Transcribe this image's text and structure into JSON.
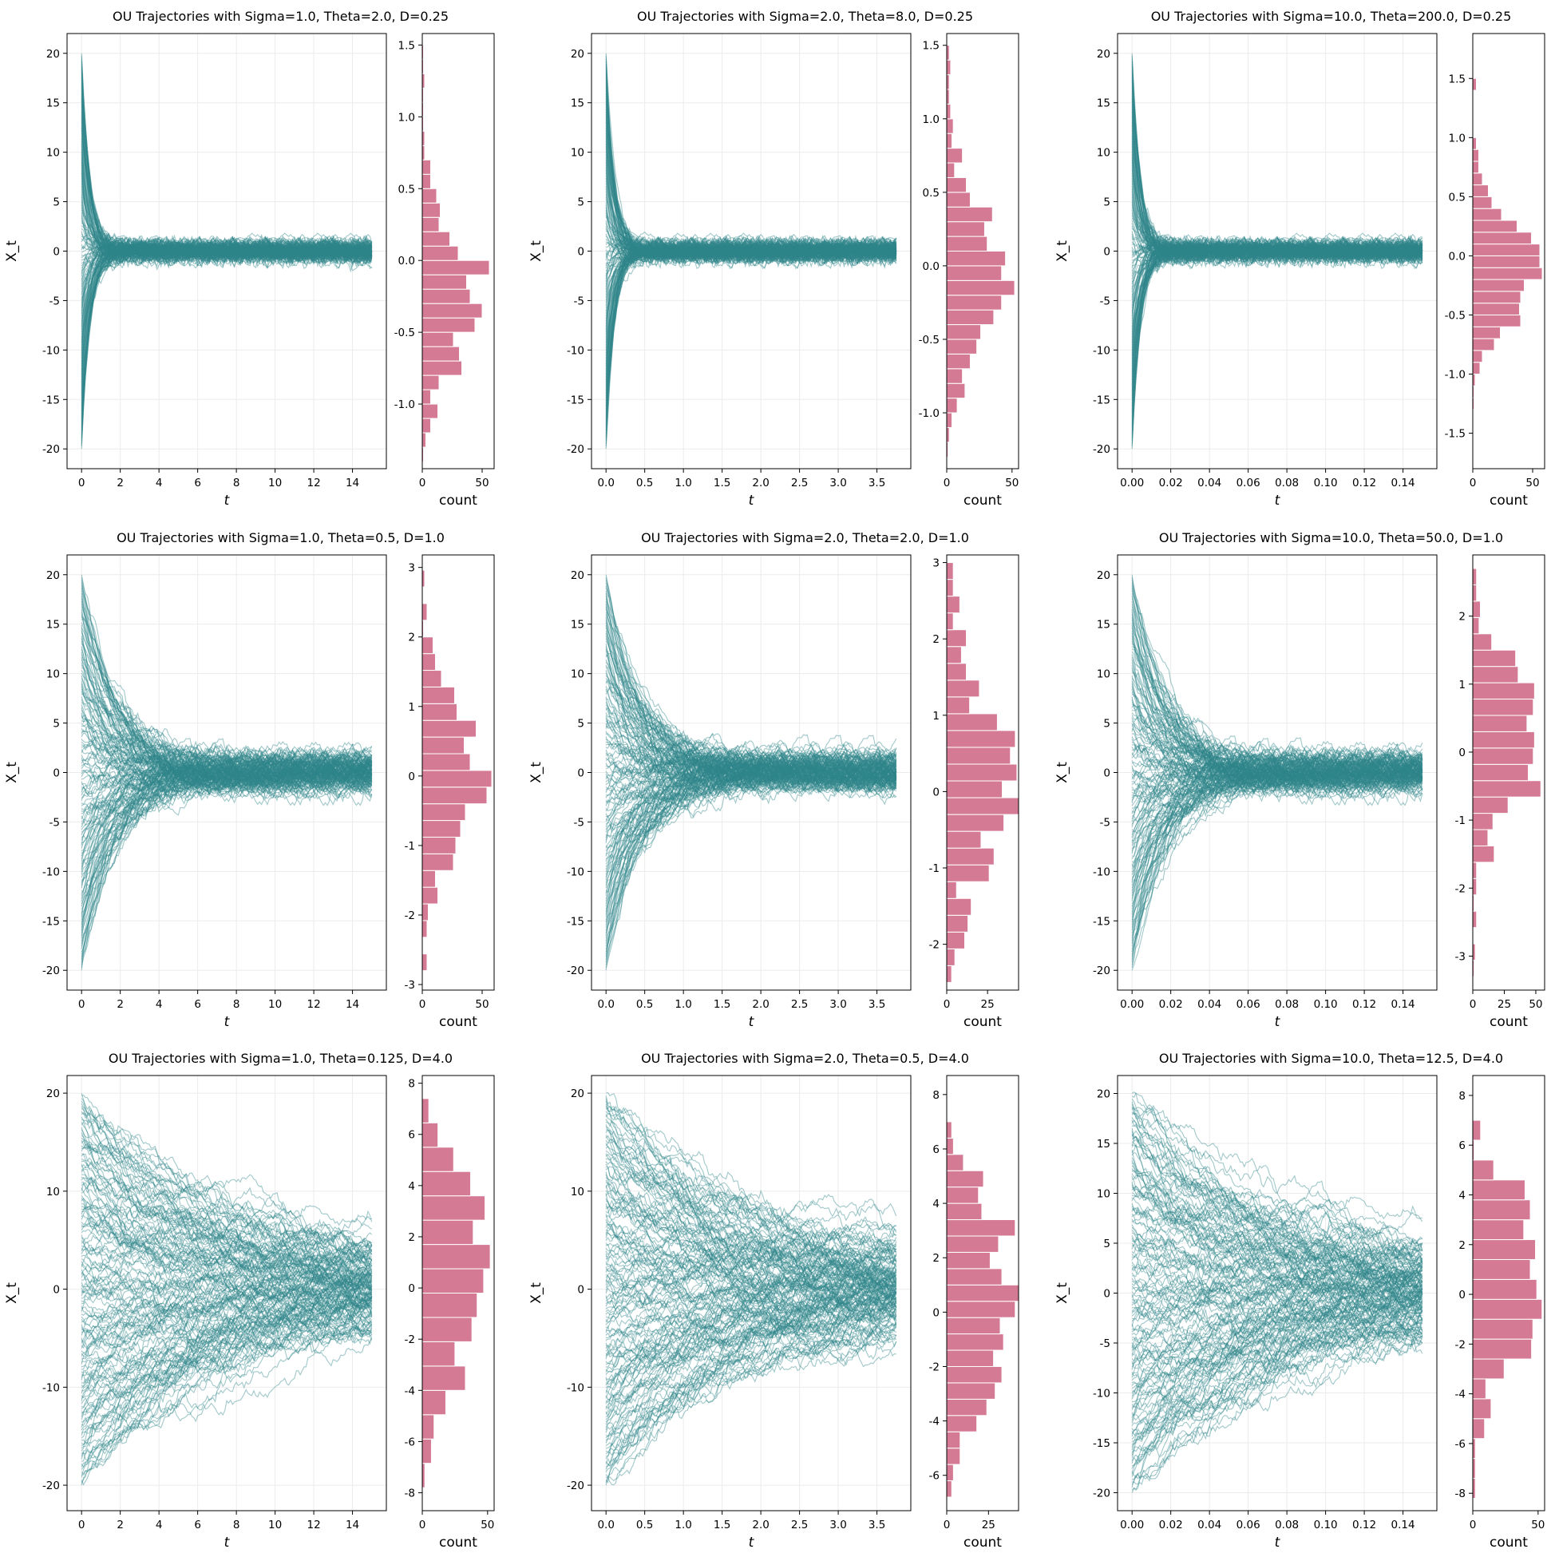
{
  "colors": {
    "trajectory": "#2f868a",
    "histogram": "#d57a95",
    "grid": "#ebebeb",
    "axis": "#000000"
  },
  "chart_data": [
    {
      "type": "line",
      "title": "OU Trajectories with Sigma=1.0, Theta=2.0, D=0.25",
      "sigma": 1.0,
      "theta": 2.0,
      "D": 0.25,
      "x0_range": [
        -20,
        20
      ],
      "xlabel": "t",
      "ylabel": "X_t",
      "xlim": [
        -0.75,
        15.75
      ],
      "ylim": [
        -22,
        22
      ],
      "xticks": [
        0,
        2,
        4,
        6,
        8,
        10,
        12,
        14
      ],
      "yticks": [
        -20,
        -15,
        -10,
        -5,
        0,
        5,
        10,
        15,
        20
      ],
      "grid": true,
      "hist": {
        "type": "bar",
        "orientation": "horizontal",
        "xlabel": "count",
        "xlim": [
          0,
          60
        ],
        "xticks": [
          0,
          50
        ],
        "ylim": [
          -1.45,
          1.58
        ],
        "yticks": [
          -1.0,
          -0.5,
          0.0,
          0.5,
          1.0,
          1.5
        ],
        "bin_edges": [
          -1.4,
          -1.3,
          -1.2,
          -1.1,
          -1.0,
          -0.9,
          -0.8,
          -0.7,
          -0.6,
          -0.5,
          -0.4,
          -0.3,
          -0.2,
          -0.1,
          0.0,
          0.1,
          0.2,
          0.3,
          0.4,
          0.5,
          0.6,
          0.7,
          0.8,
          0.9,
          1.0,
          1.1,
          1.2,
          1.3,
          1.4,
          1.5
        ],
        "counts": [
          1,
          3,
          7,
          13,
          7,
          14,
          33,
          31,
          26,
          44,
          50,
          40,
          37,
          56,
          30,
          23,
          14,
          15,
          12,
          7,
          7,
          2,
          2,
          1,
          1,
          1,
          2,
          1,
          1
        ]
      }
    },
    {
      "type": "line",
      "title": "OU Trajectories with Sigma=2.0, Theta=8.0, D=0.25",
      "sigma": 2.0,
      "theta": 8.0,
      "D": 0.25,
      "x0_range": [
        -20,
        20
      ],
      "xlabel": "t",
      "ylabel": "X_t",
      "xlim": [
        -0.1875,
        3.9375
      ],
      "ylim": [
        -22,
        22
      ],
      "xticks": [
        0.0,
        0.5,
        1.0,
        1.5,
        2.0,
        2.5,
        3.0,
        3.5
      ],
      "yticks": [
        -20,
        -15,
        -10,
        -5,
        0,
        5,
        10,
        15,
        20
      ],
      "grid": true,
      "hist": {
        "type": "bar",
        "orientation": "horizontal",
        "xlabel": "count",
        "xlim": [
          0,
          55
        ],
        "xticks": [
          0,
          50
        ],
        "ylim": [
          -1.38,
          1.58
        ],
        "yticks": [
          -1.0,
          -0.5,
          0.0,
          0.5,
          1.0,
          1.5
        ],
        "bin_edges": [
          -1.3,
          -1.2,
          -1.1,
          -1.0,
          -0.9,
          -0.8,
          -0.7,
          -0.6,
          -0.5,
          -0.4,
          -0.3,
          -0.2,
          -0.1,
          0.0,
          0.1,
          0.2,
          0.3,
          0.4,
          0.5,
          0.6,
          0.7,
          0.8,
          0.9,
          1.0,
          1.1,
          1.2,
          1.3,
          1.4,
          1.5
        ],
        "counts": [
          1,
          2,
          4,
          8,
          14,
          12,
          18,
          23,
          26,
          36,
          42,
          52,
          42,
          45,
          31,
          29,
          35,
          18,
          15,
          6,
          12,
          4,
          5,
          3,
          2,
          2,
          3,
          2
        ]
      }
    },
    {
      "type": "line",
      "title": "OU Trajectories with Sigma=10.0, Theta=200.0, D=0.25",
      "sigma": 10.0,
      "theta": 200.0,
      "D": 0.25,
      "x0_range": [
        -20,
        20
      ],
      "xlabel": "t",
      "ylabel": "X_t",
      "xlim": [
        -0.0075,
        0.1575
      ],
      "ylim": [
        -22,
        22
      ],
      "xticks": [
        0.0,
        0.02,
        0.04,
        0.06,
        0.08,
        0.1,
        0.12,
        0.14
      ],
      "yticks": [
        -20,
        -15,
        -10,
        -5,
        0,
        5,
        10,
        15,
        20
      ],
      "grid": true,
      "hist": {
        "type": "bar",
        "orientation": "horizontal",
        "xlabel": "count",
        "xlim": [
          0,
          60
        ],
        "xticks": [
          0,
          50
        ],
        "ylim": [
          -1.8,
          1.88
        ],
        "yticks": [
          -1.5,
          -1.0,
          -0.5,
          0.0,
          0.5,
          1.0,
          1.5
        ],
        "bin_edges": [
          -1.3,
          -1.2,
          -1.1,
          -1.0,
          -0.9,
          -0.8,
          -0.7,
          -0.6,
          -0.5,
          -0.4,
          -0.3,
          -0.2,
          -0.1,
          0.0,
          0.1,
          0.2,
          0.3,
          0.4,
          0.5,
          0.6,
          0.7,
          0.8,
          0.9,
          1.0,
          1.1,
          1.2,
          1.3,
          1.4,
          1.5,
          1.6
        ],
        "counts": [
          1,
          1,
          2,
          6,
          8,
          18,
          23,
          40,
          39,
          40,
          43,
          58,
          56,
          56,
          49,
          37,
          24,
          16,
          13,
          8,
          5,
          5,
          3,
          0,
          0,
          0,
          0,
          3,
          0
        ]
      }
    },
    {
      "type": "line",
      "title": "OU Trajectories with Sigma=1.0, Theta=0.5, D=1.0",
      "sigma": 1.0,
      "theta": 0.5,
      "D": 1.0,
      "x0_range": [
        -20,
        20
      ],
      "xlabel": "t",
      "ylabel": "X_t",
      "xlim": [
        -0.75,
        15.75
      ],
      "ylim": [
        -22,
        22
      ],
      "xticks": [
        0,
        2,
        4,
        6,
        8,
        10,
        12,
        14
      ],
      "yticks": [
        -20,
        -15,
        -10,
        -5,
        0,
        5,
        10,
        15,
        20
      ],
      "grid": true,
      "hist": {
        "type": "bar",
        "orientation": "horizontal",
        "xlabel": "count",
        "xlim": [
          0,
          60
        ],
        "xticks": [
          0,
          50
        ],
        "ylim": [
          -3.08,
          3.18
        ],
        "yticks": [
          -3,
          -2,
          -1,
          0,
          1,
          2,
          3
        ],
        "bin_edges": [
          -2.8,
          -2.56,
          -2.32,
          -2.08,
          -1.84,
          -1.6,
          -1.36,
          -1.12,
          -0.88,
          -0.64,
          -0.4,
          -0.16,
          0.08,
          0.32,
          0.56,
          0.8,
          1.04,
          1.28,
          1.52,
          1.76,
          2.0,
          2.24,
          2.48,
          2.72,
          2.96
        ],
        "counts": [
          4,
          0,
          4,
          5,
          13,
          11,
          26,
          28,
          32,
          36,
          54,
          58,
          40,
          35,
          45,
          29,
          27,
          16,
          11,
          9,
          1,
          4,
          0,
          2
        ]
      }
    },
    {
      "type": "line",
      "title": "OU Trajectories with Sigma=2.0, Theta=2.0, D=1.0",
      "sigma": 2.0,
      "theta": 2.0,
      "D": 1.0,
      "x0_range": [
        -20,
        20
      ],
      "xlabel": "t",
      "ylabel": "X_t",
      "xlim": [
        -0.1875,
        3.9375
      ],
      "ylim": [
        -22,
        22
      ],
      "xticks": [
        0.0,
        0.5,
        1.0,
        1.5,
        2.0,
        2.5,
        3.0,
        3.5
      ],
      "yticks": [
        -20,
        -15,
        -10,
        -5,
        0,
        5,
        10,
        15,
        20
      ],
      "grid": true,
      "hist": {
        "type": "bar",
        "orientation": "horizontal",
        "xlabel": "count",
        "xlim": [
          0,
          44
        ],
        "xticks": [
          0,
          25
        ],
        "ylim": [
          -2.6,
          3.1
        ],
        "yticks": [
          -2,
          -1,
          0,
          1,
          2,
          3
        ],
        "bin_edges": [
          -2.5,
          -2.28,
          -2.06,
          -1.84,
          -1.62,
          -1.4,
          -1.18,
          -0.96,
          -0.74,
          -0.52,
          -0.3,
          -0.08,
          0.14,
          0.36,
          0.58,
          0.8,
          1.02,
          1.24,
          1.46,
          1.68,
          1.9,
          2.12,
          2.34,
          2.56,
          2.78,
          3.0
        ],
        "counts": [
          3,
          5,
          11,
          13,
          15,
          6,
          26,
          29,
          21,
          35,
          44,
          34,
          43,
          39,
          42,
          31,
          14,
          20,
          12,
          9,
          12,
          4,
          8,
          4,
          4
        ]
      }
    },
    {
      "type": "line",
      "title": "OU Trajectories with Sigma=10.0, Theta=50.0, D=1.0",
      "sigma": 10.0,
      "theta": 50.0,
      "D": 1.0,
      "x0_range": [
        -20,
        20
      ],
      "xlabel": "t",
      "ylabel": "X_t",
      "xlim": [
        -0.0075,
        0.1575
      ],
      "ylim": [
        -22,
        22
      ],
      "xticks": [
        0.0,
        0.02,
        0.04,
        0.06,
        0.08,
        0.1,
        0.12,
        0.14
      ],
      "yticks": [
        -20,
        -15,
        -10,
        -5,
        0,
        5,
        10,
        15,
        20
      ],
      "grid": true,
      "hist": {
        "type": "bar",
        "orientation": "horizontal",
        "xlabel": "count",
        "xlim": [
          0,
          57
        ],
        "xticks": [
          0,
          25,
          50
        ],
        "ylim": [
          -3.5,
          2.9
        ],
        "yticks": [
          -3,
          -2,
          -1,
          0,
          1,
          2
        ],
        "bin_edges": [
          -3.3,
          -3.06,
          -2.82,
          -2.58,
          -2.34,
          -2.1,
          -1.86,
          -1.62,
          -1.38,
          -1.14,
          -0.9,
          -0.66,
          -0.42,
          -0.18,
          0.06,
          0.3,
          0.54,
          0.78,
          1.02,
          1.26,
          1.5,
          1.74,
          1.98,
          2.22,
          2.46,
          2.7
        ],
        "counts": [
          1,
          2,
          0,
          3,
          1,
          3,
          3,
          17,
          12,
          16,
          28,
          54,
          44,
          48,
          49,
          43,
          48,
          49,
          36,
          34,
          15,
          5,
          6,
          3,
          3
        ]
      }
    },
    {
      "type": "line",
      "title": "OU Trajectories with Sigma=1.0, Theta=0.125, D=4.0",
      "sigma": 1.0,
      "theta": 0.125,
      "D": 4.0,
      "x0_range": [
        -20,
        20
      ],
      "xlabel": "t",
      "ylabel": "X_t",
      "xlim": [
        -0.75,
        15.75
      ],
      "ylim": [
        -22.6,
        21.8
      ],
      "xticks": [
        0,
        2,
        4,
        6,
        8,
        10,
        12,
        14
      ],
      "yticks": [
        -20,
        -10,
        0,
        10,
        20
      ],
      "grid": true,
      "hist": {
        "type": "bar",
        "orientation": "horizontal",
        "xlabel": "count",
        "xlim": [
          0,
          55
        ],
        "xticks": [
          0,
          50
        ],
        "ylim": [
          -8.7,
          8.3
        ],
        "yticks": [
          -8,
          -6,
          -4,
          -2,
          0,
          2,
          4,
          6,
          8
        ],
        "bin_edges": [
          -7.8,
          -6.85,
          -5.9,
          -4.95,
          -4.0,
          -3.05,
          -2.1,
          -1.15,
          -0.2,
          0.75,
          1.7,
          2.65,
          3.6,
          4.55,
          5.5,
          6.45,
          7.4
        ],
        "counts": [
          2,
          7,
          9,
          18,
          33,
          25,
          38,
          42,
          47,
          52,
          39,
          48,
          37,
          24,
          12,
          5
        ]
      }
    },
    {
      "type": "line",
      "title": "OU Trajectories with Sigma=2.0, Theta=0.5, D=4.0",
      "sigma": 2.0,
      "theta": 0.5,
      "D": 4.0,
      "x0_range": [
        -20,
        20
      ],
      "xlabel": "t",
      "ylabel": "X_t",
      "xlim": [
        -0.1875,
        3.9375
      ],
      "ylim": [
        -22.6,
        21.8
      ],
      "xticks": [
        0.0,
        0.5,
        1.0,
        1.5,
        2.0,
        2.5,
        3.0,
        3.5
      ],
      "yticks": [
        -20,
        -10,
        0,
        10,
        20
      ],
      "grid": true,
      "hist": {
        "type": "bar",
        "orientation": "horizontal",
        "xlabel": "count",
        "xlim": [
          0,
          43
        ],
        "xticks": [
          0,
          25
        ],
        "ylim": [
          -7.3,
          8.7
        ],
        "yticks": [
          -6,
          -4,
          -2,
          0,
          2,
          4,
          6,
          8
        ],
        "bin_edges": [
          -6.8,
          -6.2,
          -5.6,
          -5.0,
          -4.4,
          -3.8,
          -3.2,
          -2.6,
          -2.0,
          -1.4,
          -0.8,
          -0.2,
          0.4,
          1.0,
          1.6,
          2.2,
          2.8,
          3.4,
          4.0,
          4.6,
          5.2,
          5.8,
          6.4,
          7.0
        ],
        "counts": [
          3,
          4,
          8,
          8,
          18,
          24,
          29,
          33,
          28,
          34,
          32,
          41,
          43,
          33,
          26,
          31,
          41,
          21,
          19,
          22,
          10,
          4,
          3
        ]
      }
    },
    {
      "type": "line",
      "title": "OU Trajectories with Sigma=10.0, Theta=12.5, D=4.0",
      "sigma": 10.0,
      "theta": 12.5,
      "D": 4.0,
      "x0_range": [
        -20,
        20
      ],
      "xlabel": "t",
      "ylabel": "X_t",
      "xlim": [
        -0.0075,
        0.1575
      ],
      "ylim": [
        -21.8,
        21.8
      ],
      "xticks": [
        0.0,
        0.02,
        0.04,
        0.06,
        0.08,
        0.1,
        0.12,
        0.14
      ],
      "yticks": [
        -20,
        -15,
        -10,
        -5,
        0,
        5,
        10,
        15,
        20
      ],
      "grid": true,
      "hist": {
        "type": "bar",
        "orientation": "horizontal",
        "xlabel": "count",
        "xlim": [
          0,
          55
        ],
        "xticks": [
          0,
          50
        ],
        "ylim": [
          -8.7,
          8.8
        ],
        "yticks": [
          -8,
          -6,
          -4,
          -2,
          0,
          2,
          4,
          6,
          8
        ],
        "bin_edges": [
          -8.2,
          -7.4,
          -6.6,
          -5.8,
          -5.0,
          -4.2,
          -3.4,
          -2.6,
          -1.8,
          -1.0,
          -0.2,
          0.6,
          1.4,
          2.2,
          3.0,
          3.8,
          4.6,
          5.4,
          6.2,
          7.0,
          7.8
        ],
        "counts": [
          2,
          2,
          2,
          9,
          14,
          10,
          24,
          45,
          46,
          53,
          49,
          44,
          48,
          39,
          44,
          40,
          16,
          1,
          6,
          0
        ]
      }
    }
  ]
}
